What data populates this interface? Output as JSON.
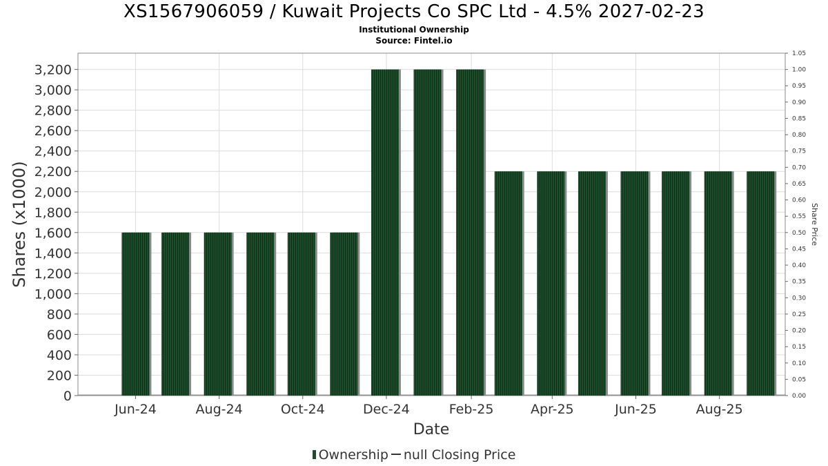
{
  "chart_data": {
    "type": "bar",
    "title": "XS1567906059 / Kuwait Projects Co SPC Ltd - 4.5% 2027-02-23",
    "subtitle_1": "Institutional Ownership",
    "subtitle_2": "Source: Fintel.io",
    "xlabel": "Date",
    "ylabel": "Shares (x1000)",
    "y2label": "Share Price",
    "x_tick_labels": [
      "Jun-24",
      "Aug-24",
      "Oct-24",
      "Dec-24",
      "Feb-25",
      "Apr-25",
      "Jun-25",
      "Aug-25"
    ],
    "y_ticks": [
      0,
      200,
      400,
      600,
      800,
      1000,
      1200,
      1400,
      1600,
      1800,
      2000,
      2200,
      2400,
      2600,
      2800,
      3000,
      3200
    ],
    "y_tick_labels": [
      "0",
      "200",
      "400",
      "600",
      "800",
      "1,000",
      "1,200",
      "1,400",
      "1,600",
      "1,800",
      "2,000",
      "2,200",
      "2,400",
      "2,600",
      "2,800",
      "3,000",
      "3,200"
    ],
    "ylim": [
      0,
      3360
    ],
    "y2_ticks": [
      "0.00",
      "0.05",
      "0.10",
      "0.15",
      "0.20",
      "0.25",
      "0.30",
      "0.35",
      "0.40",
      "0.45",
      "0.50",
      "0.55",
      "0.60",
      "0.65",
      "0.70",
      "0.75",
      "0.80",
      "0.85",
      "0.90",
      "0.95",
      "1.00",
      "1.05"
    ],
    "y2lim": [
      0,
      1.05
    ],
    "categories": [
      "2024-06-01",
      "2024-06-30",
      "2024-07-31",
      "2024-08-31",
      "2024-09-30",
      "2024-10-31",
      "2024-11-30",
      "2024-12-31",
      "2025-01-31",
      "2025-02-28",
      "2025-03-31",
      "2025-04-30",
      "2025-05-31",
      "2025-06-30",
      "2025-07-31",
      "2025-08-31"
    ],
    "series": [
      {
        "name": "Ownership",
        "values": [
          1600,
          1600,
          1600,
          1600,
          1600,
          1600,
          3200,
          3200,
          3200,
          2200,
          2200,
          2200,
          2200,
          2200,
          2200,
          2200
        ]
      }
    ],
    "grid": true,
    "legend_position": "bottom-center",
    "colors": {
      "bar": "#1e4d2b",
      "bar_shadow": "#8a8a8a",
      "grid": "#dcdcdc",
      "axis": "#888888"
    }
  },
  "legend": {
    "ownership_label": "Ownership",
    "price_label": "null Closing Price"
  }
}
